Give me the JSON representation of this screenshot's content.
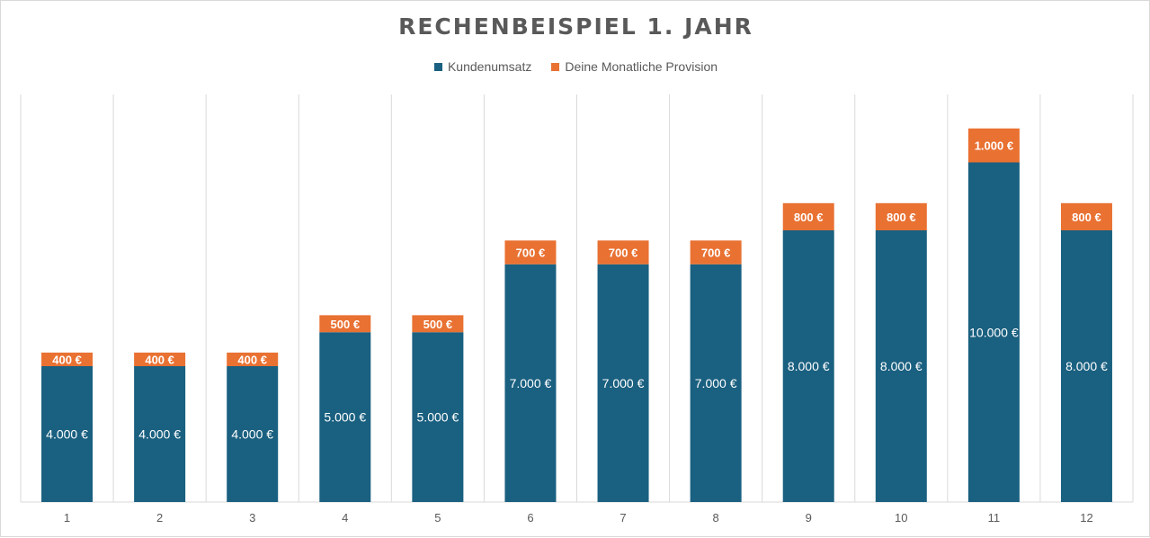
{
  "chart_data": {
    "type": "bar",
    "stacked": true,
    "title": "RECHENBEISPIEL 1. JAHR",
    "xlabel": "",
    "ylabel": "",
    "legend_position": "top",
    "grid": "vertical",
    "ylim": [
      0,
      12000
    ],
    "categories": [
      "1",
      "2",
      "3",
      "4",
      "5",
      "6",
      "7",
      "8",
      "9",
      "10",
      "11",
      "12"
    ],
    "series": [
      {
        "name": "Kundenumsatz",
        "color": "#1a6080",
        "values": [
          4000,
          4000,
          4000,
          5000,
          5000,
          7000,
          7000,
          7000,
          8000,
          8000,
          10000,
          8000
        ],
        "labels": [
          "4.000 €",
          "4.000 €",
          "4.000 €",
          "5.000 €",
          "5.000 €",
          "7.000 €",
          "7.000 €",
          "7.000 €",
          "8.000 €",
          "8.000 €",
          "10.000 €",
          "8.000 €"
        ]
      },
      {
        "name": "Deine Monatliche Provision",
        "color": "#e97132",
        "values": [
          400,
          400,
          400,
          500,
          500,
          700,
          700,
          700,
          800,
          800,
          1000,
          800
        ],
        "labels": [
          "400 €",
          "400 €",
          "400 €",
          "500 €",
          "500 €",
          "700 €",
          "700 €",
          "700 €",
          "800 €",
          "800 €",
          "1.000 €",
          "800 €"
        ]
      }
    ]
  }
}
